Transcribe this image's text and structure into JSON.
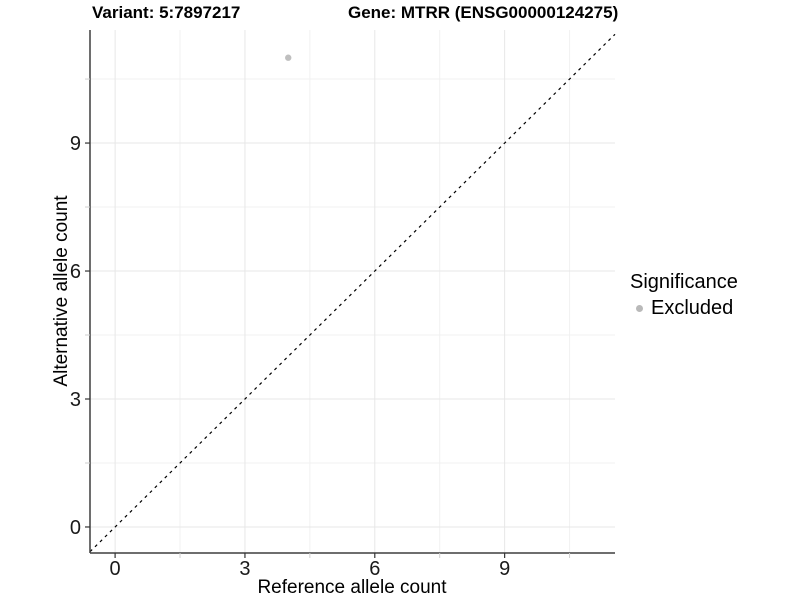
{
  "chart_data": {
    "type": "scatter",
    "titles": {
      "left": "Variant: 5:7897217",
      "right": "Gene: MTRR (ENSG00000124275)"
    },
    "xlabel": "Reference allele count",
    "ylabel": "Alternative allele count",
    "xlim": [
      -0.58,
      11.55
    ],
    "ylim": [
      -0.61,
      11.65
    ],
    "x_ticks": [
      0,
      3,
      6,
      9
    ],
    "y_ticks": [
      0,
      3,
      6,
      9
    ],
    "x_minor_ticks": [
      1.5,
      4.5,
      7.5,
      10.5
    ],
    "y_minor_ticks": [
      1.5,
      4.5,
      7.5,
      10.5
    ],
    "grid": true,
    "points": [
      {
        "x": 4,
        "y": 11,
        "series": "Excluded"
      }
    ],
    "reference_line": {
      "slope": 1,
      "intercept": 0,
      "linetype": "dashed",
      "color": "#000000"
    },
    "legend": {
      "position": "right",
      "title": "Significance",
      "entries": [
        {
          "label": "Excluded",
          "color": "#b9b9b9"
        }
      ]
    },
    "colors": {
      "point": "#bfbfbf",
      "axis_line": "#3f3f3f",
      "major_grid": "#e7e7e7",
      "minor_grid": "#f1f1f1",
      "major_tick": "#333333",
      "minor_tick": "#cfcfcf",
      "tick_label": "#1a1a1a",
      "axis_title": "#000000"
    }
  }
}
